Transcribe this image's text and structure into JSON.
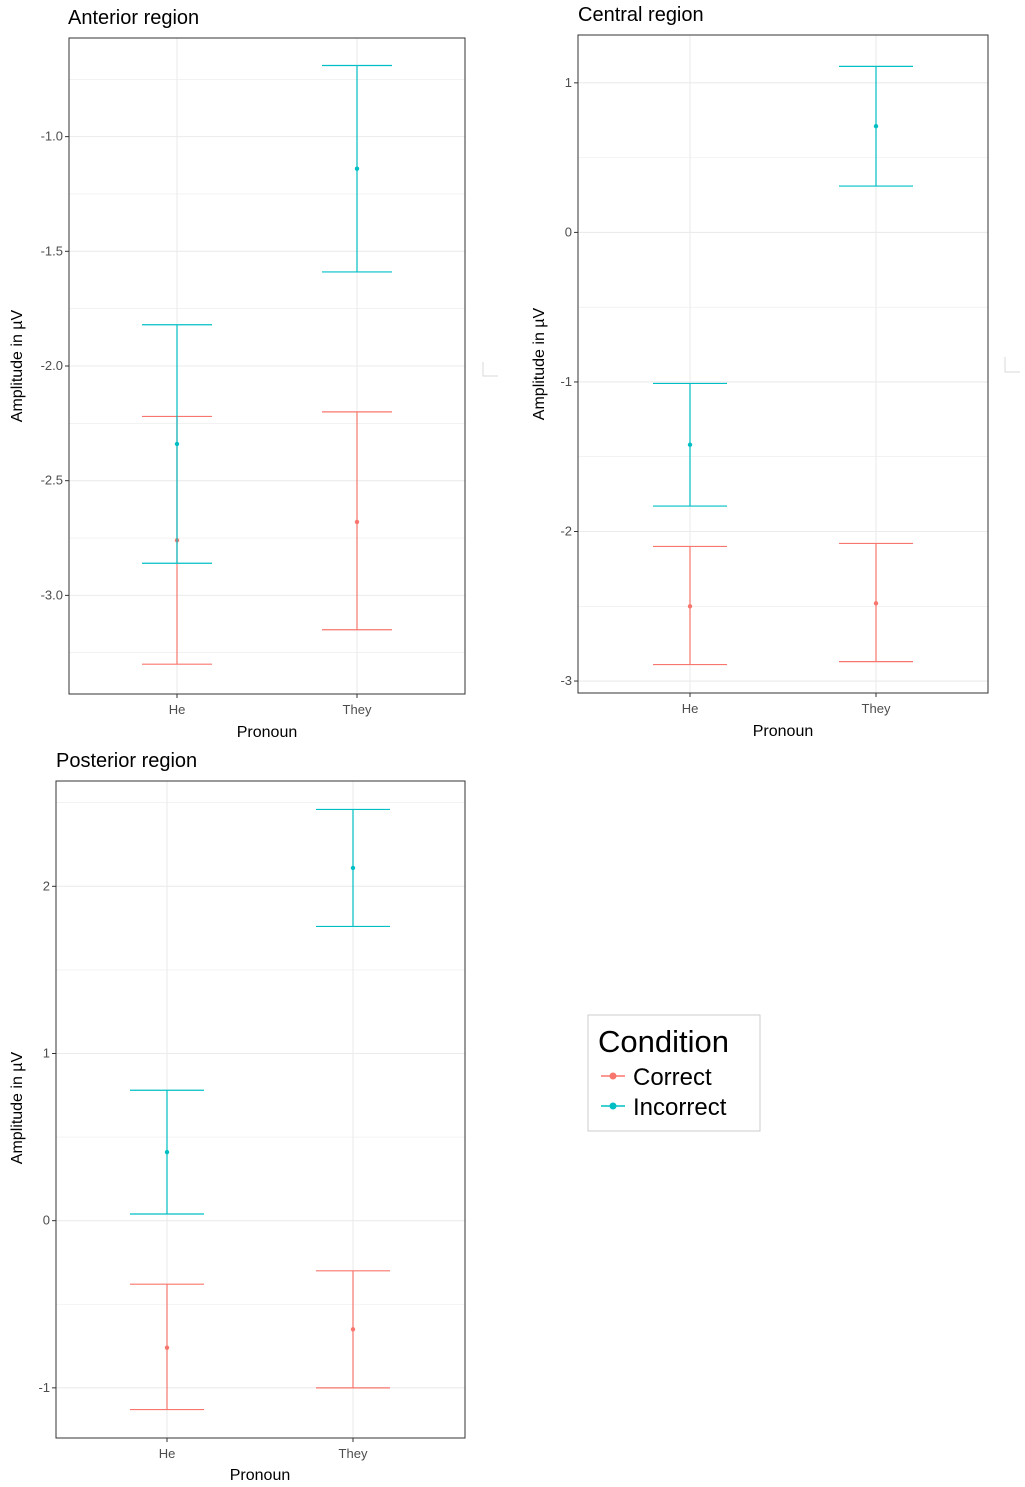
{
  "colors": {
    "Correct": "#F8766D",
    "Incorrect": "#00BFC4",
    "grid": "#ebebeb",
    "panel_border": "#333333",
    "tick_text": "#4d4d4d"
  },
  "legend": {
    "title": "Condition",
    "items": [
      "Correct",
      "Incorrect"
    ],
    "placement": "right-middle"
  },
  "chart_data": [
    {
      "type": "errorbar",
      "title": "Anterior region",
      "xlabel": "Pronoun",
      "ylabel": "Amplitude in µV",
      "categories": [
        "He",
        "They"
      ],
      "ylim": [
        -3.43,
        -0.57
      ],
      "yticks": [
        -3.0,
        -2.5,
        -2.0,
        -1.5,
        -1.0
      ],
      "ytick_labels": [
        "-3.0",
        "-2.5",
        "-2.0",
        "-1.5",
        "-1.0"
      ],
      "grid": true,
      "series": [
        {
          "name": "Correct",
          "points": [
            {
              "x": "He",
              "y": -2.76,
              "lower": -3.3,
              "upper": -2.22
            },
            {
              "x": "They",
              "y": -2.68,
              "lower": -3.15,
              "upper": -2.2
            }
          ]
        },
        {
          "name": "Incorrect",
          "points": [
            {
              "x": "He",
              "y": -2.34,
              "lower": -2.86,
              "upper": -1.82
            },
            {
              "x": "They",
              "y": -1.14,
              "lower": -1.59,
              "upper": -0.69
            }
          ]
        }
      ]
    },
    {
      "type": "errorbar",
      "title": "Central region",
      "xlabel": "Pronoun",
      "ylabel": "Amplitude in µV",
      "categories": [
        "He",
        "They"
      ],
      "ylim": [
        -3.08,
        1.32
      ],
      "yticks": [
        -3,
        -2,
        -1,
        0,
        1
      ],
      "ytick_labels": [
        "-3",
        "-2",
        "-1",
        "0",
        "1"
      ],
      "grid": true,
      "series": [
        {
          "name": "Correct",
          "points": [
            {
              "x": "He",
              "y": -2.5,
              "lower": -2.89,
              "upper": -2.1
            },
            {
              "x": "They",
              "y": -2.48,
              "lower": -2.87,
              "upper": -2.08
            }
          ]
        },
        {
          "name": "Incorrect",
          "points": [
            {
              "x": "He",
              "y": -1.42,
              "lower": -1.83,
              "upper": -1.01
            },
            {
              "x": "They",
              "y": 0.71,
              "lower": 0.31,
              "upper": 1.11
            }
          ]
        }
      ]
    },
    {
      "type": "errorbar",
      "title": "Posterior region",
      "xlabel": "Pronoun",
      "ylabel": "Amplitude in µV",
      "categories": [
        "He",
        "They"
      ],
      "ylim": [
        -1.3,
        2.63
      ],
      "yticks": [
        -1,
        0,
        1,
        2
      ],
      "ytick_labels": [
        "-1",
        "0",
        "1",
        "2"
      ],
      "grid": true,
      "series": [
        {
          "name": "Correct",
          "points": [
            {
              "x": "He",
              "y": -0.76,
              "lower": -1.13,
              "upper": -0.38
            },
            {
              "x": "They",
              "y": -0.65,
              "lower": -1.0,
              "upper": -0.3
            }
          ]
        },
        {
          "name": "Incorrect",
          "points": [
            {
              "x": "He",
              "y": 0.41,
              "lower": 0.04,
              "upper": 0.78
            },
            {
              "x": "They",
              "y": 2.11,
              "lower": 1.76,
              "upper": 2.46
            }
          ]
        }
      ]
    }
  ]
}
